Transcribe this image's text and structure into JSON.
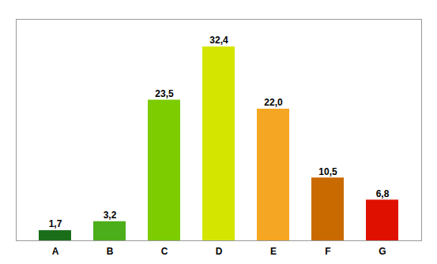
{
  "chart_data": {
    "type": "bar",
    "categories": [
      "A",
      "B",
      "C",
      "D",
      "E",
      "F",
      "G"
    ],
    "values": [
      1.7,
      3.2,
      23.5,
      32.4,
      22.0,
      10.5,
      6.8
    ],
    "value_labels": [
      "1,7",
      "3,2",
      "23,5",
      "32,4",
      "22,0",
      "10,5",
      "6,8"
    ],
    "colors": [
      "#1a6e1a",
      "#4cae1a",
      "#7ccc00",
      "#d4e600",
      "#f5a623",
      "#c96a00",
      "#e01000"
    ],
    "ylim": [
      0,
      37
    ],
    "data_labels": true,
    "tick_labels": "x",
    "grid": false
  }
}
